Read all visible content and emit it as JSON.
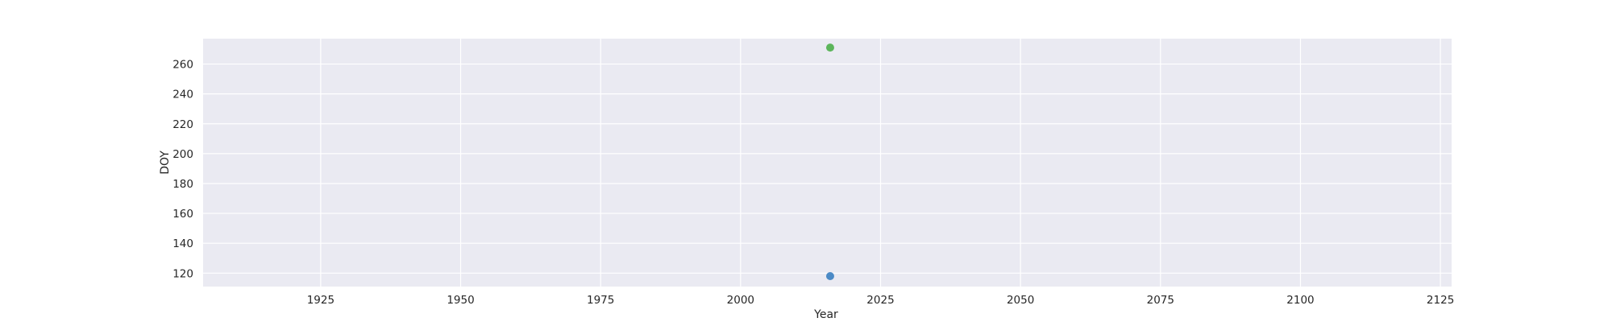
{
  "chart_data": {
    "type": "scatter",
    "title": "",
    "xlabel": "Year",
    "ylabel": "DOY",
    "xlim": [
      1904,
      2127
    ],
    "ylim": [
      111,
      277
    ],
    "xticks": [
      1925,
      1950,
      1975,
      2000,
      2025,
      2050,
      2075,
      2100,
      2125
    ],
    "yticks": [
      120,
      140,
      160,
      180,
      200,
      220,
      240,
      260
    ],
    "grid": true,
    "legend": "none",
    "background": "#eaeaf2",
    "series": [
      {
        "color": "#3a7fc1",
        "points": [
          {
            "x": 2016,
            "y": 118
          }
        ]
      },
      {
        "color": "#4daf4a",
        "points": [
          {
            "x": 2016,
            "y": 271
          }
        ]
      }
    ]
  }
}
